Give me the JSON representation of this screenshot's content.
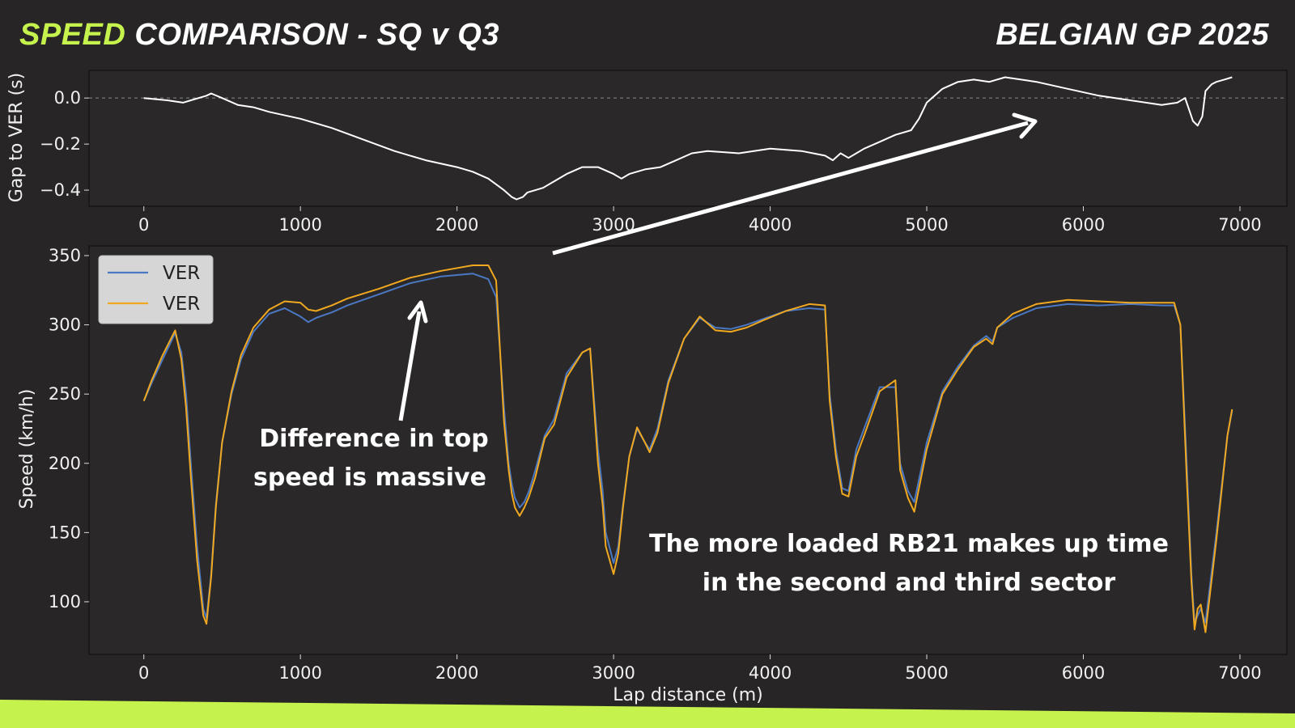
{
  "header": {
    "title_accent": "SPEED",
    "title_rest": " COMPARISON - SQ v Q3",
    "event": "BELGIAN GP 2025"
  },
  "colors": {
    "background": "#272525",
    "accent": "#c6f24e",
    "series_sq": "#4a78c2",
    "series_q3": "#f0a820",
    "gap_line": "#ffffff"
  },
  "chart_data": [
    {
      "type": "line",
      "ylabel": "Gap to VER (s)",
      "xlabel": "",
      "xlim": [
        -350,
        7300
      ],
      "ylim": [
        -0.47,
        0.12
      ],
      "xticks": [
        0,
        1000,
        2000,
        3000,
        4000,
        5000,
        6000,
        7000
      ],
      "yticks": [
        0.0,
        -0.2,
        -0.4
      ],
      "ytick_labels": [
        "0.0",
        "−0.2",
        "−0.4"
      ],
      "zero_reference_line": true,
      "series": [
        {
          "x": [
            0,
            150,
            250,
            300,
            350,
            400,
            430,
            500,
            600,
            700,
            800,
            1000,
            1200,
            1400,
            1600,
            1800,
            2000,
            2100,
            2200,
            2300,
            2350,
            2380,
            2420,
            2450,
            2500,
            2550,
            2600,
            2700,
            2800,
            2900,
            3000,
            3050,
            3100,
            3200,
            3300,
            3400,
            3500,
            3600,
            3800,
            4000,
            4200,
            4350,
            4400,
            4450,
            4500,
            4550,
            4600,
            4700,
            4800,
            4900,
            4950,
            5000,
            5100,
            5200,
            5300,
            5400,
            5500,
            5700,
            5900,
            6100,
            6300,
            6500,
            6600,
            6650,
            6680,
            6700,
            6730,
            6760,
            6780,
            6820,
            6850,
            6900,
            6950
          ],
          "y": [
            0.0,
            -0.01,
            -0.02,
            -0.01,
            0.0,
            0.01,
            0.02,
            0.0,
            -0.03,
            -0.04,
            -0.06,
            -0.09,
            -0.13,
            -0.18,
            -0.23,
            -0.27,
            -0.3,
            -0.32,
            -0.35,
            -0.4,
            -0.43,
            -0.44,
            -0.43,
            -0.41,
            -0.4,
            -0.39,
            -0.37,
            -0.33,
            -0.3,
            -0.3,
            -0.33,
            -0.35,
            -0.33,
            -0.31,
            -0.3,
            -0.27,
            -0.24,
            -0.23,
            -0.24,
            -0.22,
            -0.23,
            -0.25,
            -0.27,
            -0.24,
            -0.26,
            -0.24,
            -0.22,
            -0.19,
            -0.16,
            -0.14,
            -0.09,
            -0.02,
            0.04,
            0.07,
            0.08,
            0.07,
            0.09,
            0.07,
            0.04,
            0.01,
            -0.01,
            -0.03,
            -0.02,
            0.0,
            -0.06,
            -0.1,
            -0.12,
            -0.08,
            0.03,
            0.06,
            0.07,
            0.08,
            0.09
          ]
        }
      ]
    },
    {
      "type": "line",
      "ylabel": "Speed (km/h)",
      "xlabel": "Lap distance (m)",
      "xlim": [
        -350,
        7300
      ],
      "ylim": [
        62,
        357
      ],
      "xticks": [
        0,
        1000,
        2000,
        3000,
        4000,
        5000,
        6000,
        7000
      ],
      "yticks": [
        100,
        150,
        200,
        250,
        300,
        350
      ],
      "legend_position": "top-left",
      "series": [
        {
          "name": "VER",
          "x": [
            0,
            50,
            120,
            200,
            240,
            270,
            300,
            340,
            380,
            400,
            430,
            460,
            500,
            560,
            620,
            700,
            800,
            900,
            1000,
            1050,
            1100,
            1150,
            1200,
            1300,
            1500,
            1700,
            1900,
            2100,
            2200,
            2250,
            2300,
            2330,
            2350,
            2370,
            2400,
            2430,
            2460,
            2500,
            2560,
            2620,
            2700,
            2800,
            2850,
            2900,
            2930,
            2950,
            3000,
            3030,
            3060,
            3100,
            3150,
            3200,
            3230,
            3280,
            3350,
            3450,
            3550,
            3650,
            3750,
            3850,
            3950,
            4100,
            4250,
            4350,
            4380,
            4420,
            4460,
            4500,
            4550,
            4600,
            4700,
            4800,
            4830,
            4880,
            4920,
            5000,
            5100,
            5200,
            5300,
            5380,
            5420,
            5450,
            5550,
            5700,
            5900,
            6100,
            6300,
            6500,
            6580,
            6620,
            6660,
            6690,
            6710,
            6730,
            6750,
            6780,
            6850,
            6920,
            6950
          ],
          "y": [
            245,
            258,
            275,
            294,
            280,
            250,
            200,
            140,
            95,
            88,
            120,
            170,
            215,
            250,
            275,
            295,
            308,
            312,
            306,
            302,
            305,
            307,
            309,
            314,
            322,
            330,
            335,
            337,
            333,
            320,
            240,
            200,
            185,
            175,
            168,
            172,
            180,
            195,
            220,
            232,
            265,
            280,
            283,
            210,
            180,
            150,
            128,
            140,
            170,
            205,
            225,
            215,
            210,
            225,
            260,
            290,
            305,
            298,
            297,
            300,
            304,
            310,
            312,
            311,
            250,
            210,
            182,
            180,
            210,
            225,
            255,
            255,
            200,
            180,
            172,
            215,
            252,
            270,
            285,
            292,
            288,
            298,
            305,
            312,
            315,
            314,
            315,
            314,
            314,
            300,
            200,
            120,
            85,
            90,
            95,
            85,
            150,
            220,
            238
          ]
        },
        {
          "name": "VER",
          "x": [
            0,
            50,
            120,
            200,
            240,
            270,
            300,
            340,
            380,
            400,
            430,
            460,
            500,
            560,
            620,
            700,
            800,
            900,
            1000,
            1050,
            1100,
            1150,
            1200,
            1300,
            1500,
            1700,
            1900,
            2100,
            2200,
            2250,
            2300,
            2330,
            2350,
            2370,
            2400,
            2430,
            2460,
            2500,
            2560,
            2620,
            2700,
            2800,
            2850,
            2900,
            2930,
            2950,
            3000,
            3030,
            3060,
            3100,
            3150,
            3200,
            3230,
            3280,
            3350,
            3450,
            3550,
            3650,
            3750,
            3850,
            3950,
            4100,
            4250,
            4350,
            4380,
            4420,
            4460,
            4500,
            4550,
            4600,
            4700,
            4800,
            4830,
            4880,
            4920,
            5000,
            5100,
            5200,
            5300,
            5380,
            5420,
            5450,
            5550,
            5700,
            5900,
            6100,
            6300,
            6500,
            6580,
            6620,
            6660,
            6690,
            6710,
            6730,
            6750,
            6780,
            6850,
            6920,
            6950
          ],
          "y": [
            245,
            260,
            278,
            296,
            275,
            240,
            190,
            130,
            90,
            84,
            118,
            168,
            215,
            252,
            278,
            298,
            311,
            317,
            316,
            311,
            310,
            312,
            314,
            319,
            326,
            334,
            339,
            343,
            343,
            332,
            230,
            195,
            178,
            168,
            162,
            168,
            176,
            190,
            218,
            228,
            262,
            280,
            283,
            200,
            170,
            140,
            120,
            135,
            168,
            205,
            226,
            215,
            208,
            222,
            258,
            290,
            306,
            296,
            295,
            298,
            303,
            310,
            315,
            314,
            245,
            205,
            178,
            176,
            205,
            220,
            252,
            260,
            195,
            175,
            165,
            210,
            250,
            268,
            284,
            290,
            286,
            298,
            308,
            315,
            318,
            317,
            316,
            316,
            316,
            300,
            190,
            115,
            80,
            95,
            98,
            78,
            145,
            220,
            239
          ]
        }
      ],
      "annotations": [
        {
          "lines": [
            "Difference in top",
            "speed is massive"
          ]
        },
        {
          "lines": [
            "The more loaded RB21 makes up time",
            "in the second and third sector"
          ]
        }
      ]
    }
  ]
}
